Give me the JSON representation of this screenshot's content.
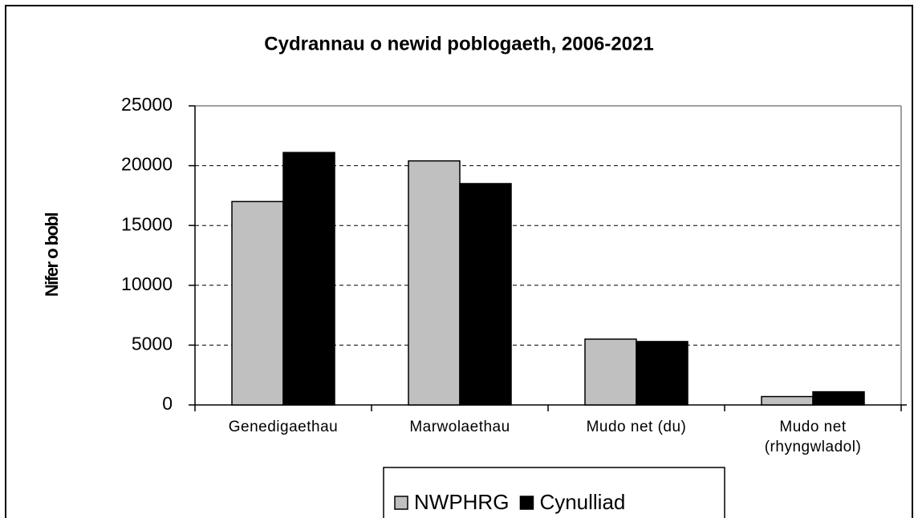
{
  "chart_data": {
    "type": "bar",
    "title": "Cydrannau o newid poblogaeth, 2006-2021",
    "y_label": "Nifer o bobl",
    "categories": [
      "Genedigaethau",
      "Marwolaethau",
      "Mudo net (du)",
      "Mudo net (rhyngwladol)"
    ],
    "series": [
      {
        "name": "NWPHRG",
        "color": "#c0c0c0",
        "values": [
          17000,
          20400,
          5500,
          700
        ]
      },
      {
        "name": "Cynulliad",
        "color": "#000000",
        "values": [
          21100,
          18500,
          5300,
          1100
        ]
      }
    ],
    "ylim": [
      0,
      25000
    ],
    "yticks": [
      0,
      5000,
      10000,
      15000,
      20000,
      25000
    ],
    "grid": true,
    "legend": "bottom"
  }
}
